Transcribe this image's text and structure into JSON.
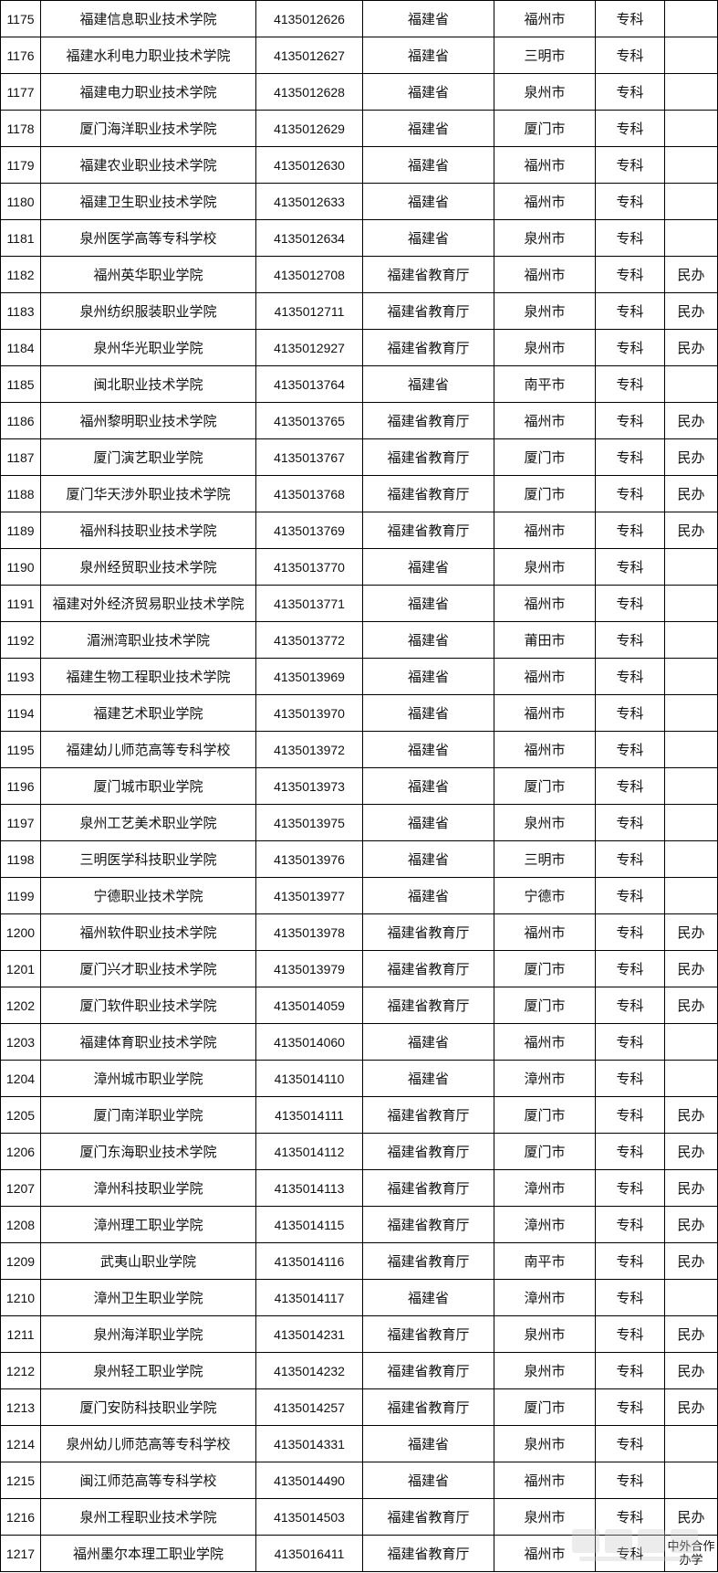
{
  "rows": [
    [
      "1175",
      "福建信息职业技术学院",
      "4135012626",
      "福建省",
      "福州市",
      "专科",
      ""
    ],
    [
      "1176",
      "福建水利电力职业技术学院",
      "4135012627",
      "福建省",
      "三明市",
      "专科",
      ""
    ],
    [
      "1177",
      "福建电力职业技术学院",
      "4135012628",
      "福建省",
      "泉州市",
      "专科",
      ""
    ],
    [
      "1178",
      "厦门海洋职业技术学院",
      "4135012629",
      "福建省",
      "厦门市",
      "专科",
      ""
    ],
    [
      "1179",
      "福建农业职业技术学院",
      "4135012630",
      "福建省",
      "福州市",
      "专科",
      ""
    ],
    [
      "1180",
      "福建卫生职业技术学院",
      "4135012633",
      "福建省",
      "福州市",
      "专科",
      ""
    ],
    [
      "1181",
      "泉州医学高等专科学校",
      "4135012634",
      "福建省",
      "泉州市",
      "专科",
      ""
    ],
    [
      "1182",
      "福州英华职业学院",
      "4135012708",
      "福建省教育厅",
      "福州市",
      "专科",
      "民办"
    ],
    [
      "1183",
      "泉州纺织服装职业学院",
      "4135012711",
      "福建省教育厅",
      "泉州市",
      "专科",
      "民办"
    ],
    [
      "1184",
      "泉州华光职业学院",
      "4135012927",
      "福建省教育厅",
      "泉州市",
      "专科",
      "民办"
    ],
    [
      "1185",
      "闽北职业技术学院",
      "4135013764",
      "福建省",
      "南平市",
      "专科",
      ""
    ],
    [
      "1186",
      "福州黎明职业技术学院",
      "4135013765",
      "福建省教育厅",
      "福州市",
      "专科",
      "民办"
    ],
    [
      "1187",
      "厦门演艺职业学院",
      "4135013767",
      "福建省教育厅",
      "厦门市",
      "专科",
      "民办"
    ],
    [
      "1188",
      "厦门华天涉外职业技术学院",
      "4135013768",
      "福建省教育厅",
      "厦门市",
      "专科",
      "民办"
    ],
    [
      "1189",
      "福州科技职业技术学院",
      "4135013769",
      "福建省教育厅",
      "福州市",
      "专科",
      "民办"
    ],
    [
      "1190",
      "泉州经贸职业技术学院",
      "4135013770",
      "福建省",
      "泉州市",
      "专科",
      ""
    ],
    [
      "1191",
      "福建对外经济贸易职业技术学院",
      "4135013771",
      "福建省",
      "福州市",
      "专科",
      ""
    ],
    [
      "1192",
      "湄洲湾职业技术学院",
      "4135013772",
      "福建省",
      "莆田市",
      "专科",
      ""
    ],
    [
      "1193",
      "福建生物工程职业技术学院",
      "4135013969",
      "福建省",
      "福州市",
      "专科",
      ""
    ],
    [
      "1194",
      "福建艺术职业学院",
      "4135013970",
      "福建省",
      "福州市",
      "专科",
      ""
    ],
    [
      "1195",
      "福建幼儿师范高等专科学校",
      "4135013972",
      "福建省",
      "福州市",
      "专科",
      ""
    ],
    [
      "1196",
      "厦门城市职业学院",
      "4135013973",
      "福建省",
      "厦门市",
      "专科",
      ""
    ],
    [
      "1197",
      "泉州工艺美术职业学院",
      "4135013975",
      "福建省",
      "泉州市",
      "专科",
      ""
    ],
    [
      "1198",
      "三明医学科技职业学院",
      "4135013976",
      "福建省",
      "三明市",
      "专科",
      ""
    ],
    [
      "1199",
      "宁德职业技术学院",
      "4135013977",
      "福建省",
      "宁德市",
      "专科",
      ""
    ],
    [
      "1200",
      "福州软件职业技术学院",
      "4135013978",
      "福建省教育厅",
      "福州市",
      "专科",
      "民办"
    ],
    [
      "1201",
      "厦门兴才职业技术学院",
      "4135013979",
      "福建省教育厅",
      "厦门市",
      "专科",
      "民办"
    ],
    [
      "1202",
      "厦门软件职业技术学院",
      "4135014059",
      "福建省教育厅",
      "厦门市",
      "专科",
      "民办"
    ],
    [
      "1203",
      "福建体育职业技术学院",
      "4135014060",
      "福建省",
      "福州市",
      "专科",
      ""
    ],
    [
      "1204",
      "漳州城市职业学院",
      "4135014110",
      "福建省",
      "漳州市",
      "专科",
      ""
    ],
    [
      "1205",
      "厦门南洋职业学院",
      "4135014111",
      "福建省教育厅",
      "厦门市",
      "专科",
      "民办"
    ],
    [
      "1206",
      "厦门东海职业技术学院",
      "4135014112",
      "福建省教育厅",
      "厦门市",
      "专科",
      "民办"
    ],
    [
      "1207",
      "漳州科技职业学院",
      "4135014113",
      "福建省教育厅",
      "漳州市",
      "专科",
      "民办"
    ],
    [
      "1208",
      "漳州理工职业学院",
      "4135014115",
      "福建省教育厅",
      "漳州市",
      "专科",
      "民办"
    ],
    [
      "1209",
      "武夷山职业学院",
      "4135014116",
      "福建省教育厅",
      "南平市",
      "专科",
      "民办"
    ],
    [
      "1210",
      "漳州卫生职业学院",
      "4135014117",
      "福建省",
      "漳州市",
      "专科",
      ""
    ],
    [
      "1211",
      "泉州海洋职业学院",
      "4135014231",
      "福建省教育厅",
      "泉州市",
      "专科",
      "民办"
    ],
    [
      "1212",
      "泉州轻工职业学院",
      "4135014232",
      "福建省教育厅",
      "泉州市",
      "专科",
      "民办"
    ],
    [
      "1213",
      "厦门安防科技职业学院",
      "4135014257",
      "福建省教育厅",
      "厦门市",
      "专科",
      "民办"
    ],
    [
      "1214",
      "泉州幼儿师范高等专科学校",
      "4135014331",
      "福建省",
      "泉州市",
      "专科",
      ""
    ],
    [
      "1215",
      "闽江师范高等专科学校",
      "4135014490",
      "福建省",
      "福州市",
      "专科",
      ""
    ],
    [
      "1216",
      "泉州工程职业技术学院",
      "4135014503",
      "福建省教育厅",
      "泉州市",
      "专科",
      "民办"
    ],
    [
      "1217",
      "福州墨尔本理工职业学院",
      "4135016411",
      "福建省教育厅",
      "福州市",
      "专科",
      "中外合作办学"
    ]
  ],
  "watermark": {
    "text": "留学社区",
    "url_text": "bbs.liuxue86.com"
  }
}
